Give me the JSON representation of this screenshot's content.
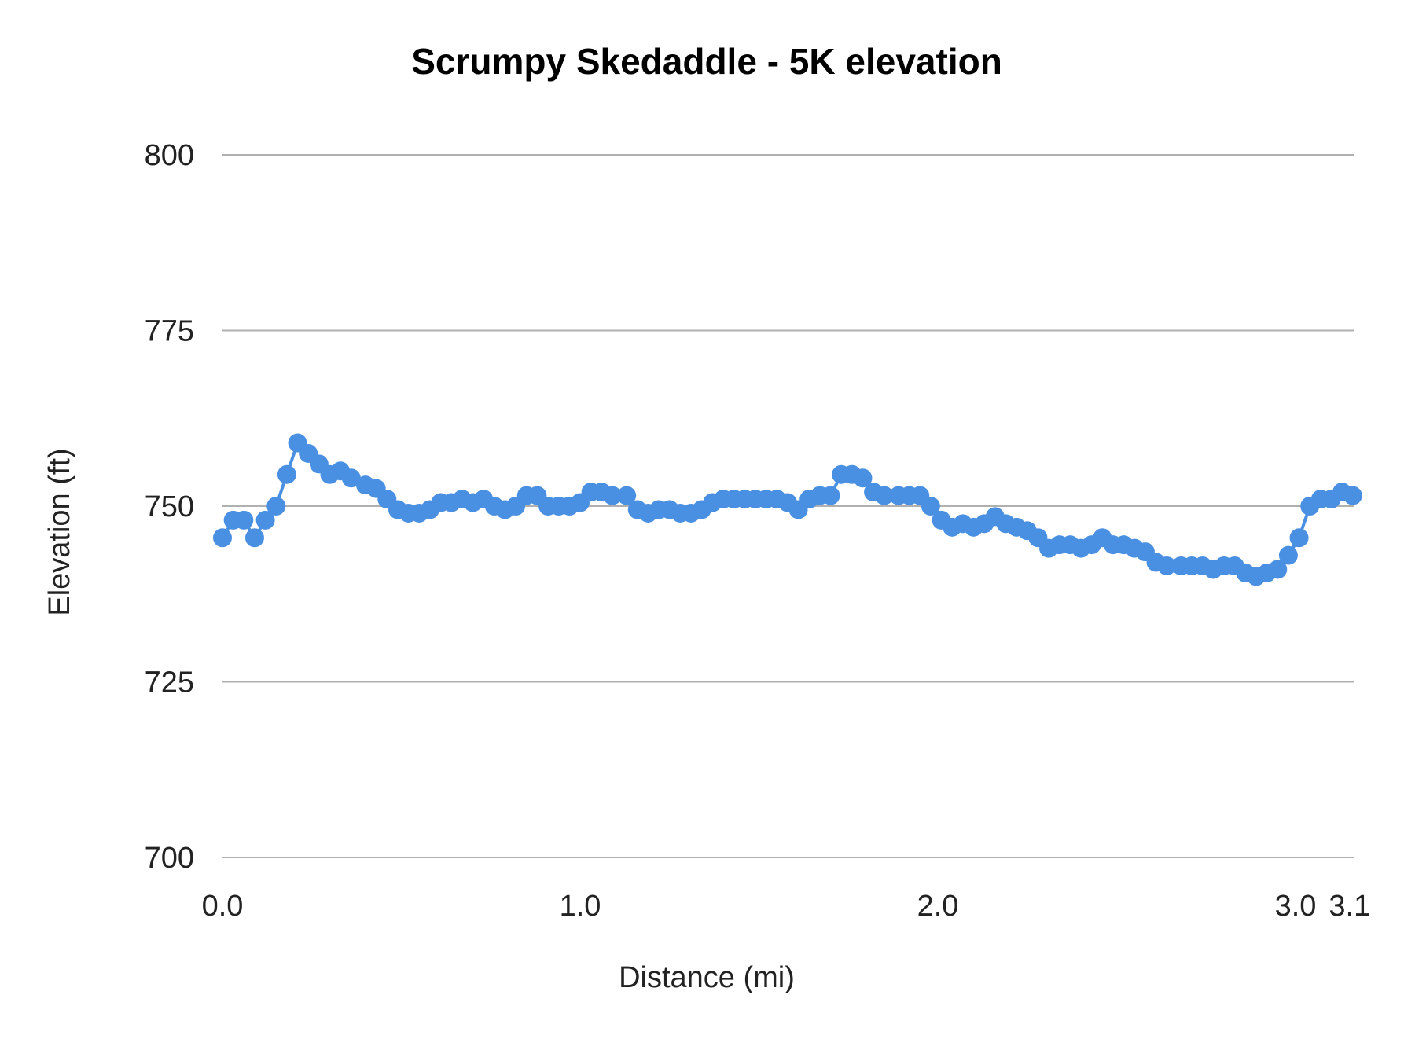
{
  "chart_data": {
    "type": "line",
    "title": "Scrumpy Skedaddle - 5K elevation",
    "xlabel": "Distance (mi)",
    "ylabel": "Elevation (ft)",
    "ylim": [
      700,
      800
    ],
    "yticks": [
      "700",
      "725",
      "750",
      "775",
      "800"
    ],
    "xticks": [
      "0.0",
      "1.0",
      "2.0",
      "3.0",
      "3.1"
    ],
    "grid": true,
    "legend": "none",
    "markers": true,
    "color": "#4a90e2",
    "x": [
      0.0,
      0.03,
      0.06,
      0.09,
      0.12,
      0.15,
      0.18,
      0.21,
      0.24,
      0.27,
      0.3,
      0.33,
      0.36,
      0.4,
      0.43,
      0.46,
      0.49,
      0.52,
      0.55,
      0.58,
      0.61,
      0.64,
      0.67,
      0.7,
      0.73,
      0.76,
      0.79,
      0.82,
      0.85,
      0.88,
      0.91,
      0.94,
      0.97,
      1.0,
      1.03,
      1.06,
      1.09,
      1.13,
      1.16,
      1.19,
      1.22,
      1.25,
      1.28,
      1.31,
      1.34,
      1.37,
      1.4,
      1.43,
      1.46,
      1.49,
      1.52,
      1.55,
      1.58,
      1.61,
      1.64,
      1.67,
      1.7,
      1.73,
      1.76,
      1.79,
      1.82,
      1.85,
      1.89,
      1.92,
      1.95,
      1.98,
      2.01,
      2.04,
      2.07,
      2.1,
      2.13,
      2.16,
      2.19,
      2.22,
      2.25,
      2.28,
      2.31,
      2.34,
      2.37,
      2.4,
      2.43,
      2.46,
      2.49,
      2.52,
      2.55,
      2.58,
      2.61,
      2.64,
      2.68,
      2.71,
      2.74,
      2.77,
      2.8,
      2.83,
      2.86,
      2.89,
      2.92,
      2.95,
      2.98,
      3.01,
      3.04,
      3.07,
      3.1,
      3.13,
      3.16
    ],
    "y": [
      745.5,
      748,
      748,
      745.5,
      748,
      750,
      754.5,
      759,
      757.5,
      756,
      754.5,
      755,
      754,
      753,
      752.5,
      751,
      749.5,
      749,
      749,
      749.5,
      750.5,
      750.5,
      751,
      750.5,
      751,
      750,
      749.5,
      750,
      751.5,
      751.5,
      750,
      750,
      750,
      750.5,
      752,
      752,
      751.5,
      751.5,
      749.5,
      749,
      749.5,
      749.5,
      749,
      749,
      749.5,
      750.5,
      751,
      751,
      751,
      751,
      751,
      751,
      750.5,
      749.5,
      751,
      751.5,
      751.5,
      754.5,
      754.5,
      754,
      752,
      751.5,
      751.5,
      751.5,
      751.5,
      750,
      748,
      747,
      747.5,
      747,
      747.5,
      748.5,
      747.5,
      747,
      746.5,
      745.5,
      744,
      744.5,
      744.5,
      744,
      744.5,
      745.5,
      744.5,
      744.5,
      744,
      743.5,
      742,
      741.5,
      741.5,
      741.5,
      741.5,
      741,
      741.5,
      741.5,
      740.5,
      740,
      740.5,
      741,
      743,
      745.5,
      750,
      751,
      751,
      752,
      751.5
    ]
  }
}
